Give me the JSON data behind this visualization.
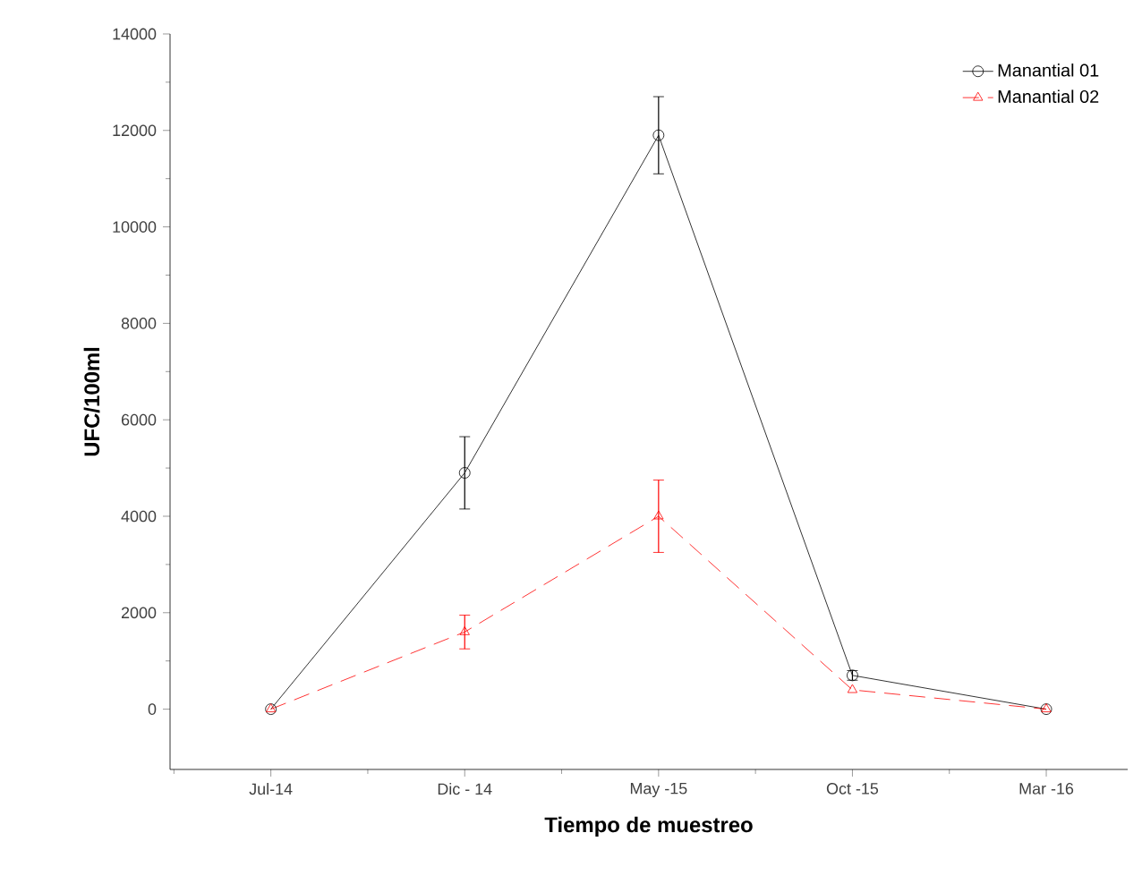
{
  "chart_data": {
    "type": "line",
    "xlabel": "Tiempo de muestreo",
    "ylabel": "UFC/100ml",
    "categories": [
      "Jul-14",
      "Dic - 14",
      "May -15",
      "Oct -15",
      "Mar -16"
    ],
    "series": [
      {
        "name": "Manantial 01",
        "color": "#000000",
        "values": [
          0,
          4900,
          11900,
          700,
          0
        ],
        "errors": [
          null,
          750,
          800,
          100,
          null
        ],
        "marker": "circle",
        "line_style": "solid"
      },
      {
        "name": "Manantial 02",
        "color": "#ff0000",
        "values": [
          0,
          1600,
          4000,
          400,
          0
        ],
        "errors": [
          null,
          350,
          750,
          null,
          null
        ],
        "marker": "triangle",
        "line_style": "dashed"
      }
    ],
    "ylim": [
      -1250,
      14000
    ],
    "yticks": [
      0,
      2000,
      4000,
      6000,
      8000,
      10000,
      12000,
      14000
    ],
    "legend": "top right",
    "grid": false
  }
}
